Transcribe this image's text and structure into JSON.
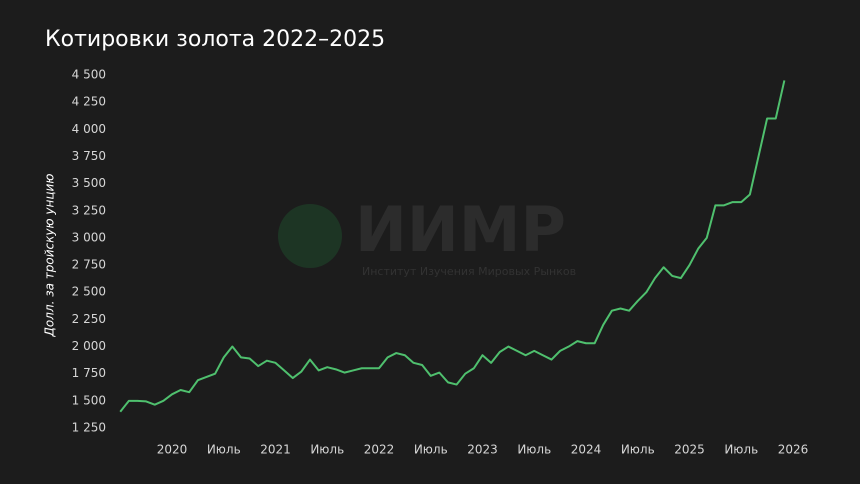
{
  "chart_data": {
    "type": "line",
    "title": "Котировки золота 2022–2025",
    "y_label": "Долл. за тройскую унцию",
    "watermark": {
      "title": "ИИМР",
      "subtitle": "Институт Изучения Мировых Рынков"
    },
    "color": "#4fc06e",
    "x": [
      "2019-07",
      "2019-08",
      "2019-09",
      "2019-10",
      "2019-11",
      "2019-12",
      "2020-01",
      "2020-02",
      "2020-03",
      "2020-04",
      "2020-05",
      "2020-06",
      "2020-07",
      "2020-08",
      "2020-09",
      "2020-10",
      "2020-11",
      "2020-12",
      "2021-01",
      "2021-02",
      "2021-03",
      "2021-04",
      "2021-05",
      "2021-06",
      "2021-07",
      "2021-08",
      "2021-09",
      "2021-10",
      "2021-11",
      "2021-12",
      "2022-01",
      "2022-02",
      "2022-03",
      "2022-04",
      "2022-05",
      "2022-06",
      "2022-07",
      "2022-08",
      "2022-09",
      "2022-10",
      "2022-11",
      "2022-12",
      "2023-01",
      "2023-02",
      "2023-03",
      "2023-04",
      "2023-05",
      "2023-06",
      "2023-07",
      "2023-08",
      "2023-09",
      "2023-10",
      "2023-11",
      "2023-12",
      "2024-01",
      "2024-02",
      "2024-03",
      "2024-04",
      "2024-05",
      "2024-06",
      "2024-07",
      "2024-08",
      "2024-09",
      "2024-10",
      "2024-11",
      "2024-12",
      "2025-01",
      "2025-02",
      "2025-03",
      "2025-04",
      "2025-05",
      "2025-06",
      "2025-07",
      "2025-08",
      "2025-09",
      "2025-10",
      "2025-11",
      "2025-12"
    ],
    "values": [
      1400,
      1500,
      1500,
      1495,
      1465,
      1500,
      1560,
      1600,
      1580,
      1690,
      1720,
      1750,
      1900,
      2000,
      1900,
      1890,
      1820,
      1870,
      1850,
      1780,
      1710,
      1770,
      1880,
      1780,
      1810,
      1790,
      1760,
      1780,
      1800,
      1800,
      1800,
      1900,
      1940,
      1920,
      1850,
      1830,
      1730,
      1760,
      1670,
      1650,
      1750,
      1800,
      1920,
      1850,
      1950,
      2000,
      1960,
      1920,
      1960,
      1920,
      1880,
      1960,
      2000,
      2050,
      2030,
      2030,
      2200,
      2330,
      2350,
      2330,
      2420,
      2500,
      2630,
      2730,
      2650,
      2630,
      2750,
      2900,
      3000,
      3300,
      3300,
      3330,
      3330,
      3400,
      3750,
      4100,
      4100,
      4450
    ],
    "xlim": [
      "2019-07",
      "2026-01"
    ],
    "xticks": [
      {
        "value": "2020-01",
        "label": "2020"
      },
      {
        "value": "2020-07",
        "label": "Июль"
      },
      {
        "value": "2021-01",
        "label": "2021"
      },
      {
        "value": "2021-07",
        "label": "Июль"
      },
      {
        "value": "2022-01",
        "label": "2022"
      },
      {
        "value": "2022-07",
        "label": "Июль"
      },
      {
        "value": "2023-01",
        "label": "2023"
      },
      {
        "value": "2023-07",
        "label": "Июль"
      },
      {
        "value": "2024-01",
        "label": "2024"
      },
      {
        "value": "2024-07",
        "label": "Июль"
      },
      {
        "value": "2025-01",
        "label": "2025"
      },
      {
        "value": "2025-07",
        "label": "Июль"
      },
      {
        "value": "2026-01",
        "label": "2026"
      }
    ],
    "ylim": [
      1250,
      4500
    ],
    "yticks": [
      {
        "value": 1250,
        "label": "1 250"
      },
      {
        "value": 1500,
        "label": "1 500"
      },
      {
        "value": 1750,
        "label": "1 750"
      },
      {
        "value": 2000,
        "label": "2 000"
      },
      {
        "value": 2250,
        "label": "2 250"
      },
      {
        "value": 2500,
        "label": "2 500"
      },
      {
        "value": 2750,
        "label": "2 750"
      },
      {
        "value": 3000,
        "label": "3 000"
      },
      {
        "value": 3250,
        "label": "3 250"
      },
      {
        "value": 3500,
        "label": "3 500"
      },
      {
        "value": 3750,
        "label": "3 750"
      },
      {
        "value": 4000,
        "label": "4 000"
      },
      {
        "value": 4250,
        "label": "4 250"
      },
      {
        "value": 4500,
        "label": "4 500"
      }
    ],
    "grid": false
  }
}
